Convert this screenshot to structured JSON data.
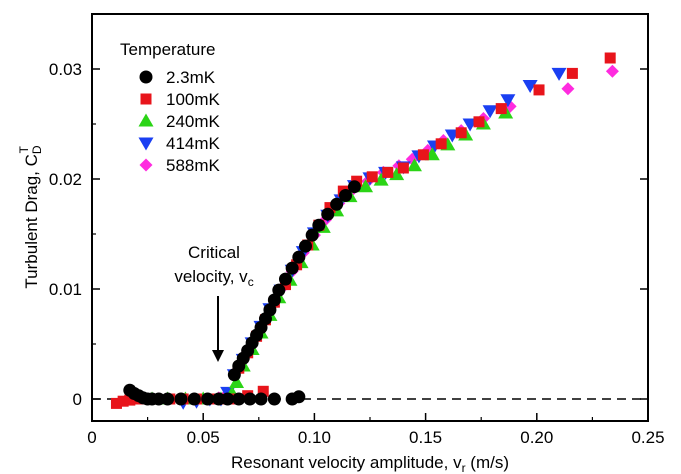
{
  "chart_data": {
    "type": "scatter",
    "xlabel": "Resonant velocity amplitude, v",
    "xlabel_sub": "r",
    "xlabel_unit": " (m/s)",
    "ylabel": "Turbulent Drag, C",
    "ylabel_sub": "D",
    "ylabel_sup": "T",
    "xlim": [
      0,
      0.25
    ],
    "ylim": [
      -0.002,
      0.035
    ],
    "x_ticks": [
      0,
      0.05,
      0.1,
      0.15,
      0.2,
      0.25
    ],
    "x_tick_labels": [
      "0",
      "0.05",
      "0.10",
      "0.15",
      "0.20",
      "0.25"
    ],
    "y_ticks": [
      0,
      0.01,
      0.02,
      0.03
    ],
    "y_tick_labels": [
      "0",
      "0.01",
      "0.02",
      "0.03"
    ],
    "grid": false,
    "baseline": {
      "y": 0,
      "style": "dashed"
    },
    "legend": {
      "title": "Temperature",
      "position": "top-left"
    },
    "annotation": {
      "line1": "Critical",
      "line2": "velocity, v",
      "sub": "c",
      "arrow_x": 0.057,
      "arrow_y": 0.0033
    },
    "series": [
      {
        "name": "2.3mK",
        "marker": "circle",
        "color": "#000000",
        "points": [
          [
            0.017,
            0.0008
          ],
          [
            0.019,
            0.0005
          ],
          [
            0.021,
            0.0003
          ],
          [
            0.023,
            0.0001
          ],
          [
            0.025,
            0.0
          ],
          [
            0.027,
            0.0
          ],
          [
            0.03,
            0.0
          ],
          [
            0.034,
            0.0
          ],
          [
            0.04,
            0.0
          ],
          [
            0.046,
            0.0
          ],
          [
            0.052,
            0.0
          ],
          [
            0.057,
            0.0
          ],
          [
            0.061,
            0.0
          ],
          [
            0.066,
            0.0
          ],
          [
            0.071,
            0.0
          ],
          [
            0.076,
            0.0
          ],
          [
            0.082,
            0.0
          ],
          [
            0.09,
            0.0
          ],
          [
            0.093,
            0.0002
          ],
          [
            0.064,
            0.0022
          ],
          [
            0.066,
            0.003
          ],
          [
            0.068,
            0.0037
          ],
          [
            0.07,
            0.0044
          ],
          [
            0.072,
            0.0051
          ],
          [
            0.074,
            0.0058
          ],
          [
            0.076,
            0.0065
          ],
          [
            0.078,
            0.0073
          ],
          [
            0.08,
            0.0081
          ],
          [
            0.082,
            0.009
          ],
          [
            0.084,
            0.0099
          ],
          [
            0.087,
            0.0109
          ],
          [
            0.09,
            0.0119
          ],
          [
            0.093,
            0.0129
          ],
          [
            0.096,
            0.0139
          ],
          [
            0.099,
            0.0149
          ],
          [
            0.102,
            0.0158
          ],
          [
            0.106,
            0.0168
          ],
          [
            0.11,
            0.0177
          ],
          [
            0.114,
            0.0185
          ],
          [
            0.118,
            0.0193
          ]
        ]
      },
      {
        "name": "100mK",
        "marker": "square",
        "color": "#e8141b",
        "points": [
          [
            0.011,
            -0.0004
          ],
          [
            0.014,
            -0.0002
          ],
          [
            0.017,
            -0.0001
          ],
          [
            0.02,
            0.0
          ],
          [
            0.024,
            0.0
          ],
          [
            0.029,
            0.0
          ],
          [
            0.035,
            0.0
          ],
          [
            0.041,
            0.0
          ],
          [
            0.047,
            0.0
          ],
          [
            0.054,
            0.0
          ],
          [
            0.06,
            0.0
          ],
          [
            0.064,
            0.0
          ],
          [
            0.07,
            0.0003
          ],
          [
            0.077,
            0.0007
          ],
          [
            0.066,
            0.0028
          ],
          [
            0.07,
            0.0042
          ],
          [
            0.074,
            0.0057
          ],
          [
            0.078,
            0.0072
          ],
          [
            0.082,
            0.0088
          ],
          [
            0.087,
            0.0104
          ],
          [
            0.092,
            0.0122
          ],
          [
            0.097,
            0.014
          ],
          [
            0.102,
            0.0158
          ],
          [
            0.107,
            0.0174
          ],
          [
            0.113,
            0.0189
          ],
          [
            0.119,
            0.0198
          ],
          [
            0.126,
            0.0202
          ],
          [
            0.133,
            0.0206
          ],
          [
            0.14,
            0.021
          ],
          [
            0.149,
            0.0222
          ],
          [
            0.157,
            0.0232
          ],
          [
            0.166,
            0.0242
          ],
          [
            0.174,
            0.0252
          ],
          [
            0.184,
            0.0264
          ],
          [
            0.201,
            0.0281
          ],
          [
            0.216,
            0.0296
          ],
          [
            0.233,
            0.031
          ]
        ]
      },
      {
        "name": "240mK",
        "marker": "triangle-up",
        "color": "#2bd416",
        "points": [
          [
            0.027,
            0.0
          ],
          [
            0.034,
            0.0
          ],
          [
            0.042,
            0.0
          ],
          [
            0.05,
            0.0
          ],
          [
            0.058,
            0.0
          ],
          [
            0.063,
            0.0005
          ],
          [
            0.065,
            0.0015
          ],
          [
            0.068,
            0.003
          ],
          [
            0.072,
            0.0045
          ],
          [
            0.076,
            0.006
          ],
          [
            0.08,
            0.0076
          ],
          [
            0.084,
            0.0092
          ],
          [
            0.089,
            0.0108
          ],
          [
            0.094,
            0.0124
          ],
          [
            0.099,
            0.014
          ],
          [
            0.104,
            0.0156
          ],
          [
            0.11,
            0.0171
          ],
          [
            0.116,
            0.0184
          ],
          [
            0.123,
            0.0193
          ],
          [
            0.13,
            0.0199
          ],
          [
            0.137,
            0.0204
          ],
          [
            0.145,
            0.0212
          ],
          [
            0.153,
            0.0222
          ],
          [
            0.16,
            0.0231
          ],
          [
            0.168,
            0.024
          ],
          [
            0.176,
            0.025
          ],
          [
            0.186,
            0.026
          ]
        ]
      },
      {
        "name": "414mK",
        "marker": "triangle-down",
        "color": "#1a3ff2",
        "points": [
          [
            0.041,
            -0.0003
          ],
          [
            0.047,
            -0.0002
          ],
          [
            0.053,
            0.0
          ],
          [
            0.058,
            0.0
          ],
          [
            0.061,
            0.0006
          ],
          [
            0.064,
            0.0022
          ],
          [
            0.068,
            0.0036
          ],
          [
            0.072,
            0.0051
          ],
          [
            0.076,
            0.0066
          ],
          [
            0.08,
            0.0082
          ],
          [
            0.085,
            0.0099
          ],
          [
            0.09,
            0.0117
          ],
          [
            0.095,
            0.0134
          ],
          [
            0.1,
            0.0151
          ],
          [
            0.106,
            0.0167
          ],
          [
            0.112,
            0.0181
          ],
          [
            0.118,
            0.0194
          ],
          [
            0.125,
            0.0201
          ],
          [
            0.132,
            0.0206
          ],
          [
            0.14,
            0.0211
          ],
          [
            0.147,
            0.0221
          ],
          [
            0.154,
            0.023
          ],
          [
            0.162,
            0.024
          ],
          [
            0.17,
            0.025
          ],
          [
            0.179,
            0.0262
          ],
          [
            0.187,
            0.0272
          ],
          [
            0.197,
            0.0285
          ],
          [
            0.21,
            0.0296
          ]
        ]
      },
      {
        "name": "588mK",
        "marker": "diamond",
        "color": "#ff2bdf",
        "points": [
          [
            0.057,
            0.0001
          ],
          [
            0.061,
            0.0005
          ],
          [
            0.066,
            0.0028
          ],
          [
            0.07,
            0.0043
          ],
          [
            0.074,
            0.0058
          ],
          [
            0.078,
            0.0074
          ],
          [
            0.082,
            0.009
          ],
          [
            0.086,
            0.0102
          ],
          [
            0.09,
            0.0116
          ],
          [
            0.095,
            0.0133
          ],
          [
            0.1,
            0.0149
          ],
          [
            0.105,
            0.0163
          ],
          [
            0.111,
            0.0178
          ],
          [
            0.117,
            0.019
          ],
          [
            0.124,
            0.0198
          ],
          [
            0.131,
            0.0206
          ],
          [
            0.138,
            0.0212
          ],
          [
            0.144,
            0.0218
          ],
          [
            0.151,
            0.0226
          ],
          [
            0.158,
            0.0235
          ],
          [
            0.166,
            0.0244
          ],
          [
            0.176,
            0.0255
          ],
          [
            0.188,
            0.0266
          ],
          [
            0.214,
            0.0282
          ],
          [
            0.234,
            0.0298
          ]
        ]
      }
    ]
  }
}
